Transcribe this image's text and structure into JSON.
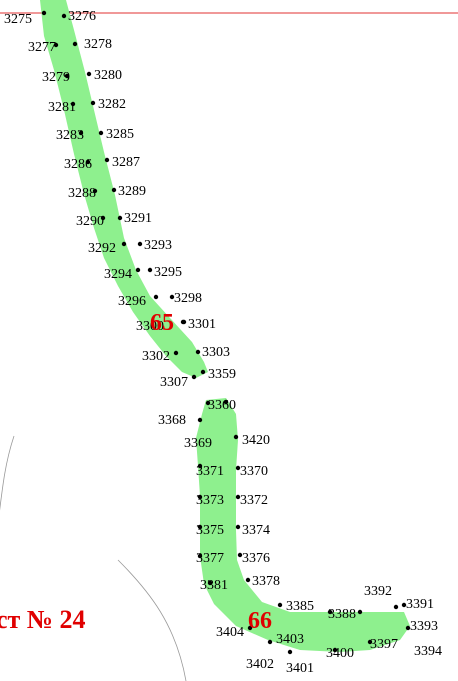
{
  "colors": {
    "parcel_fill": "#8ef08e",
    "boundary_dots": "#000000",
    "parcel_number": "#e00000",
    "red_line": "#e03030",
    "gray_line": "#9a9a9a"
  },
  "sheet_label": "ст № 24",
  "parcels": [
    {
      "number": "65"
    },
    {
      "number": "66"
    }
  ],
  "points": [
    "3275",
    "3276",
    "3277",
    "3278",
    "3279",
    "3280",
    "3281",
    "3282",
    "3283",
    "3285",
    "3286",
    "3287",
    "3288",
    "3289",
    "3290",
    "3291",
    "3292",
    "3293",
    "3294",
    "3295",
    "3296",
    "3298",
    "3300",
    "3301",
    "3302",
    "3303",
    "3307",
    "3359",
    "3360",
    "3368",
    "3420",
    "3369",
    "3370",
    "3371",
    "3372",
    "3373",
    "3374",
    "3375",
    "3376",
    "3377",
    "3378",
    "3381",
    "3385",
    "3388",
    "3392",
    "3391",
    "3393",
    "3394",
    "3397",
    "3400",
    "3401",
    "3402",
    "3403",
    "3404"
  ]
}
